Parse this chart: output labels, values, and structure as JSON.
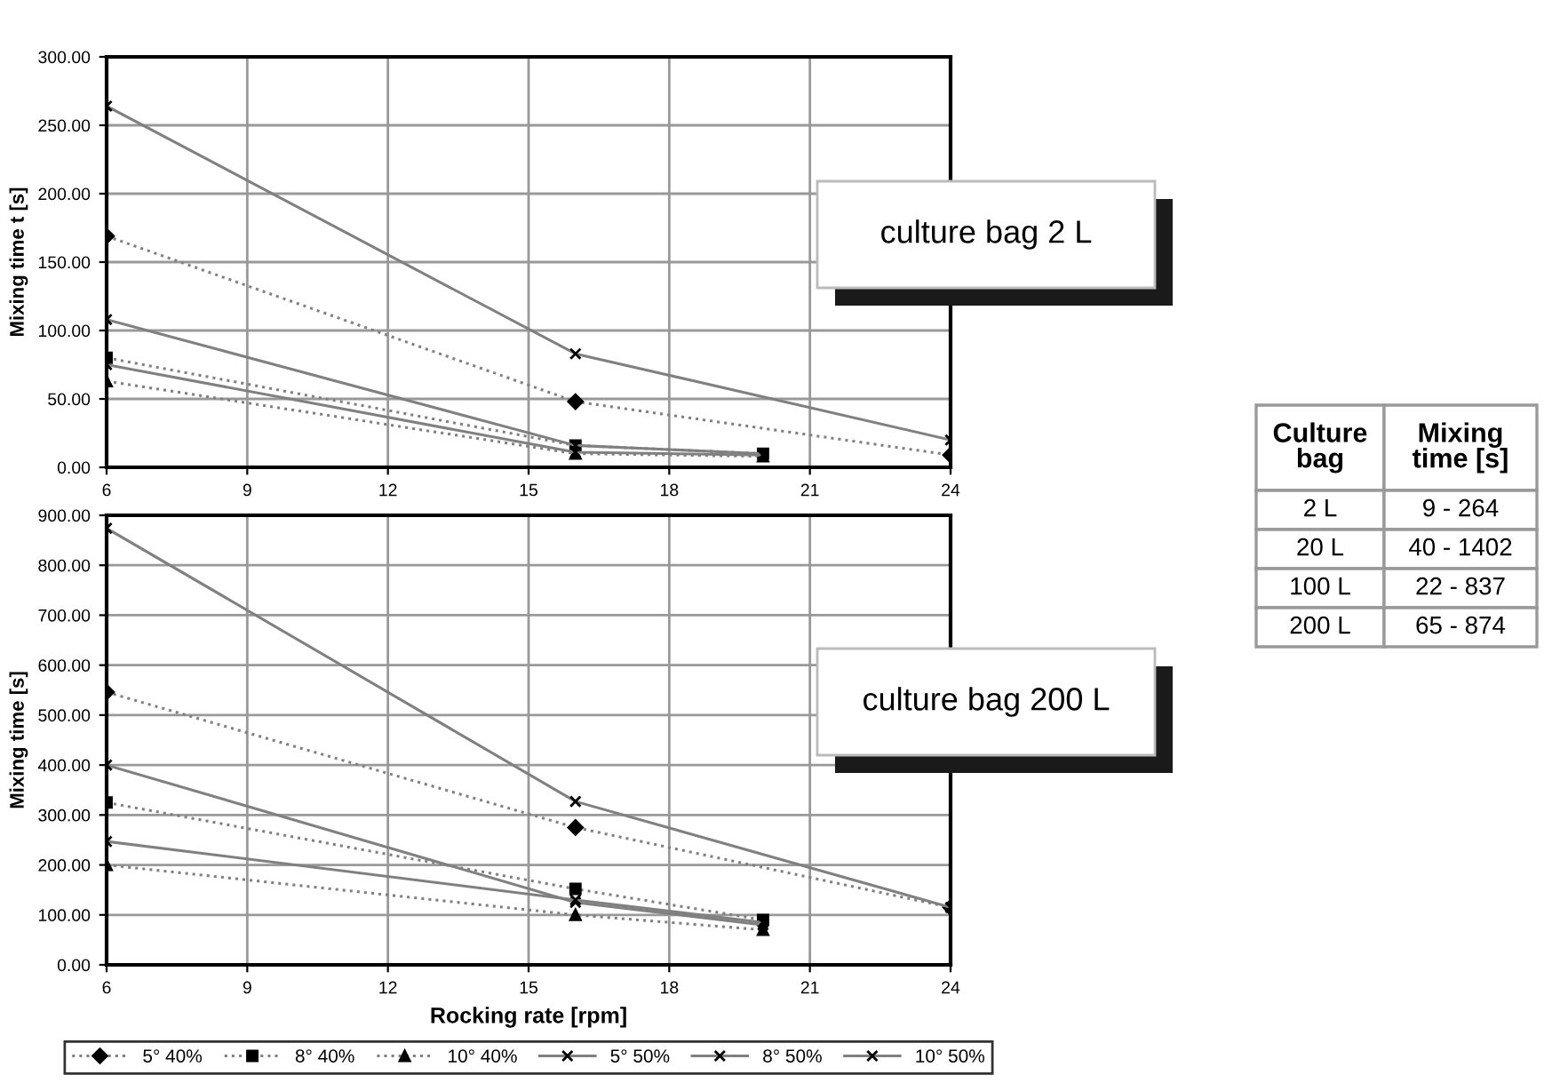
{
  "chart_data": [
    {
      "type": "line",
      "ylabel": "Mixing time t [s]",
      "annotations": [
        "culture bag 2 L"
      ],
      "xlim": [
        6,
        24
      ],
      "xticks": [
        6,
        9,
        12,
        15,
        18,
        21,
        24
      ],
      "ylim": [
        0,
        300
      ],
      "yticks": [
        {
          "value": 0,
          "label": "0.00"
        },
        {
          "value": 50,
          "label": "50.00"
        },
        {
          "value": 100,
          "label": "100.00"
        },
        {
          "value": 150,
          "label": "150.00"
        },
        {
          "value": 200,
          "label": "200.00"
        },
        {
          "value": 250,
          "label": "250.00"
        },
        {
          "value": 300,
          "label": "300.00"
        }
      ],
      "grid": true,
      "series": [
        {
          "color": "#808080",
          "line_style": "dotted",
          "marker": "diamond",
          "x": [
            6,
            16,
            24
          ],
          "values": [
            169,
            48,
            9
          ]
        },
        {
          "color": "#808080",
          "line_style": "dotted",
          "marker": "square",
          "x": [
            6,
            16,
            20
          ],
          "values": [
            80,
            16,
            10
          ]
        },
        {
          "color": "#808080",
          "line_style": "dotted",
          "marker": "triangle",
          "x": [
            6,
            16,
            20
          ],
          "values": [
            63,
            10,
            8
          ]
        },
        {
          "color": "#808080",
          "line_style": "solid",
          "marker": "cross",
          "x": [
            6,
            16,
            24
          ],
          "values": [
            264,
            83,
            20
          ]
        },
        {
          "color": "#808080",
          "line_style": "solid",
          "marker": "cross",
          "x": [
            6,
            16,
            20
          ],
          "values": [
            108,
            16,
            10
          ]
        },
        {
          "color": "#808080",
          "line_style": "solid",
          "marker": "cross",
          "x": [
            6,
            16,
            20
          ],
          "values": [
            75,
            11,
            9
          ]
        }
      ]
    },
    {
      "type": "line",
      "xlabel": "Rocking rate [rpm]",
      "ylabel": "Mixing time [s]",
      "annotations": [
        "culture bag 200 L"
      ],
      "xlim": [
        6,
        24
      ],
      "xticks": [
        6,
        9,
        12,
        15,
        18,
        21,
        24
      ],
      "ylim": [
        0,
        900
      ],
      "yticks": [
        {
          "value": 0,
          "label": "0.00"
        },
        {
          "value": 100,
          "label": "100.00"
        },
        {
          "value": 200,
          "label": "200.00"
        },
        {
          "value": 300,
          "label": "300.00"
        },
        {
          "value": 400,
          "label": "400.00"
        },
        {
          "value": 500,
          "label": "500.00"
        },
        {
          "value": 600,
          "label": "600.00"
        },
        {
          "value": 700,
          "label": "700.00"
        },
        {
          "value": 800,
          "label": "800.00"
        },
        {
          "value": 900,
          "label": "900.00"
        }
      ],
      "grid": true,
      "legend": "bottom",
      "series": [
        {
          "name": "5° 40%",
          "color": "#808080",
          "line_style": "dotted",
          "marker": "diamond",
          "x": [
            6,
            16,
            24
          ],
          "values": [
            546,
            275,
            115
          ]
        },
        {
          "name": "8° 40%",
          "color": "#808080",
          "line_style": "dotted",
          "marker": "square",
          "x": [
            6,
            16,
            20
          ],
          "values": [
            325,
            152,
            90
          ]
        },
        {
          "name": "10° 40%",
          "color": "#808080",
          "line_style": "dotted",
          "marker": "triangle",
          "x": [
            6,
            16,
            20
          ],
          "values": [
            200,
            100,
            70
          ]
        },
        {
          "name": "5° 50%",
          "color": "#808080",
          "line_style": "solid",
          "marker": "cross",
          "x": [
            6,
            16,
            24
          ],
          "values": [
            874,
            327,
            115
          ]
        },
        {
          "name": "8° 50%",
          "color": "#808080",
          "line_style": "solid",
          "marker": "cross",
          "x": [
            6,
            16,
            20
          ],
          "values": [
            400,
            125,
            80
          ]
        },
        {
          "name": "10° 50%",
          "color": "#808080",
          "line_style": "solid",
          "marker": "cross",
          "x": [
            6,
            16,
            20
          ],
          "values": [
            247,
            130,
            85
          ]
        }
      ]
    },
    {
      "type": "other",
      "annotations": [
        "Culture bag",
        "Mixing time [s]",
        "2 L",
        "9 - 264",
        "20 L",
        "40 - 1402",
        "100 L",
        "22 - 837",
        "200 L",
        "65 - 874"
      ]
    }
  ]
}
